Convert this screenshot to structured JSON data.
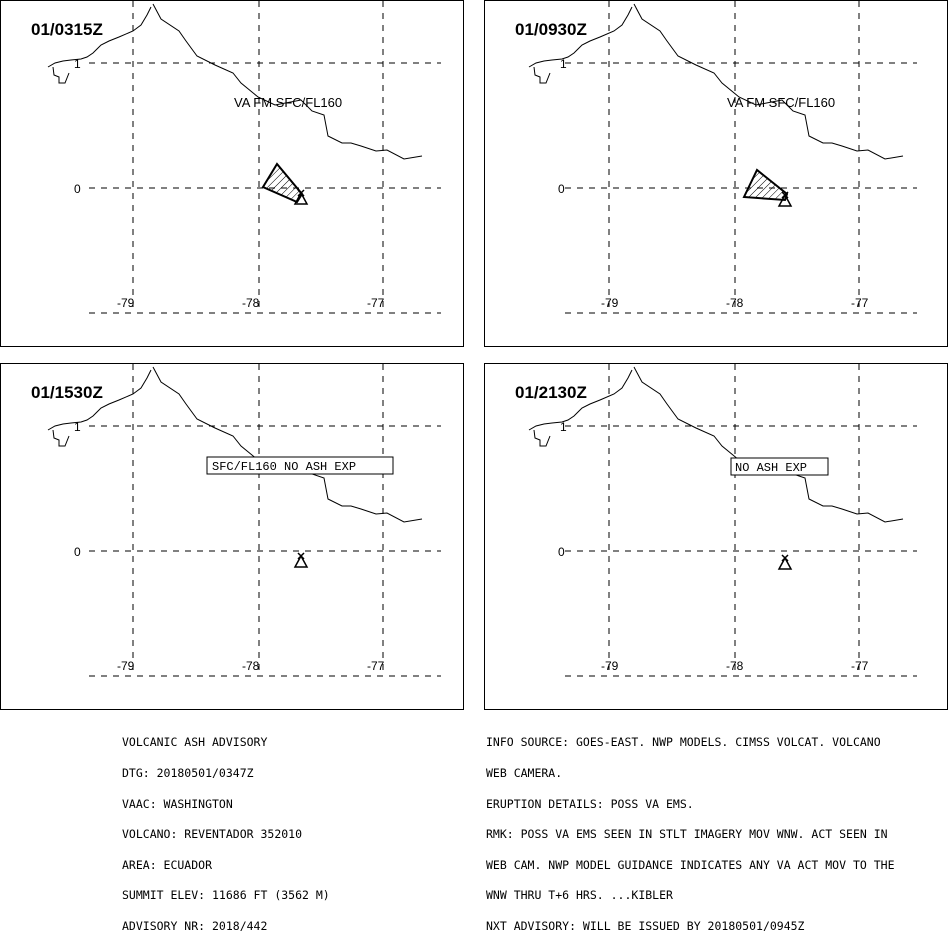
{
  "panels": [
    {
      "valid_time": "01/0315Z",
      "label": "VA FM SFC/FL160",
      "label_boxed": false,
      "ash": [
        [
          262,
          186
        ],
        [
          276,
          163
        ],
        [
          301,
          193
        ],
        [
          296,
          201
        ]
      ]
    },
    {
      "valid_time": "01/0930Z",
      "label": "VA FM SFC/FL160",
      "label_boxed": false,
      "ash": [
        [
          743,
          196
        ],
        [
          756,
          169
        ],
        [
          786,
          193
        ],
        [
          784,
          199
        ]
      ]
    },
    {
      "valid_time": "01/1530Z",
      "label": "SFC/FL160 NO ASH EXP",
      "label_boxed": true,
      "ash": null
    },
    {
      "valid_time": "01/2130Z",
      "label": "NO ASH EXP",
      "label_boxed": true,
      "ash": null
    }
  ],
  "axes": {
    "lon_ticks": [
      "-79",
      "-78",
      "-77"
    ],
    "lat_ticks": [
      "1",
      "0"
    ]
  },
  "advisory": {
    "left": [
      "VOLCANIC ASH ADVISORY",
      "DTG: 20180501/0347Z",
      "VAAC: WASHINGTON",
      "VOLCANO: REVENTADOR 352010",
      "AREA: ECUADOR",
      "SUMMIT ELEV: 11686 FT (3562 M)",
      "ADVISORY NR: 2018/442"
    ],
    "right": [
      "INFO SOURCE: GOES-EAST. NWP MODELS. CIMSS VOLCAT. VOLCANO",
      "WEB CAMERA.",
      "ERUPTION DETAILS: POSS VA EMS.",
      "RMK: POSS VA EMS SEEN IN STLT IMAGERY MOV WNW. ACT SEEN IN",
      "WEB CAM. NWP MODEL GUIDANCE INDICATES ANY VA ACT MOV TO THE",
      "WNW THRU T+6 HRS. ...KIBLER",
      "NXT ADVISORY: WILL BE ISSUED BY 20180501/0945Z"
    ]
  },
  "colors": {
    "ink": "#000000",
    "background": "#ffffff"
  }
}
